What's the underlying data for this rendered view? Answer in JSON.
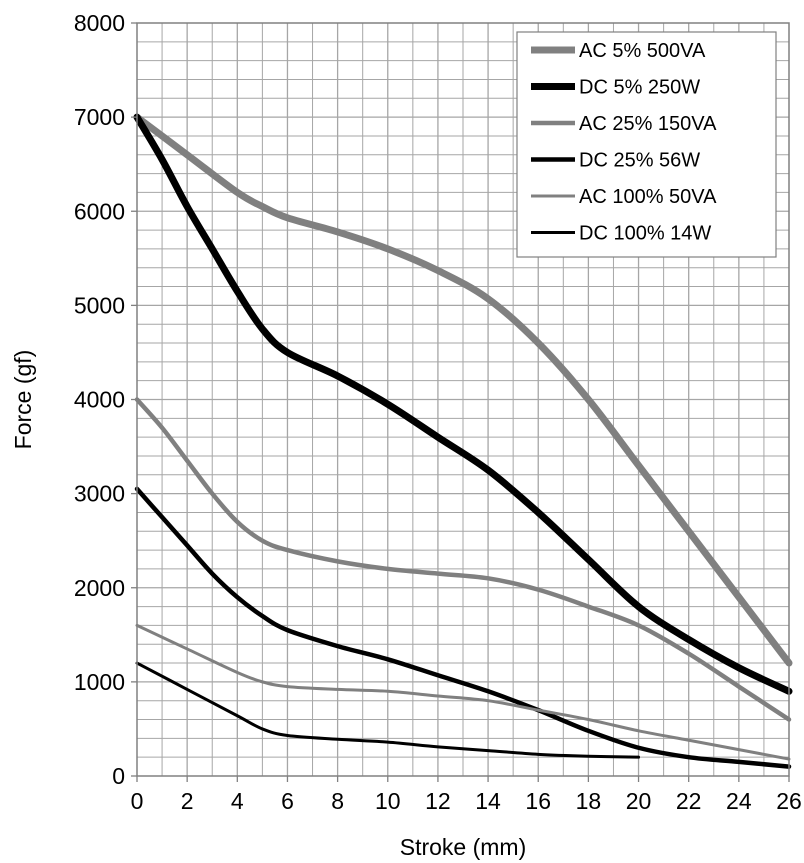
{
  "chart_data": {
    "type": "line",
    "title": "",
    "xlabel": "Stroke (mm)",
    "ylabel": "Force (gf)",
    "xlim": [
      0,
      26
    ],
    "ylim": [
      0,
      8000
    ],
    "xticks": [
      0,
      2,
      4,
      6,
      8,
      10,
      12,
      14,
      16,
      18,
      20,
      22,
      24,
      26
    ],
    "yticks": [
      0,
      1000,
      2000,
      3000,
      4000,
      5000,
      6000,
      7000,
      8000
    ],
    "x_minor_step": 1,
    "y_minor_step": 200,
    "grid": true,
    "legend_position": "top-right",
    "series": [
      {
        "name": "AC 5% 500VA",
        "color": "#808080",
        "line_weight": "thickest",
        "points": [
          [
            0,
            7000
          ],
          [
            2,
            6600
          ],
          [
            4,
            6200
          ],
          [
            5,
            6050
          ],
          [
            6,
            5930
          ],
          [
            8,
            5780
          ],
          [
            10,
            5600
          ],
          [
            12,
            5370
          ],
          [
            14,
            5070
          ],
          [
            16,
            4600
          ],
          [
            18,
            4000
          ],
          [
            20,
            3300
          ],
          [
            22,
            2600
          ],
          [
            24,
            1900
          ],
          [
            26,
            1200
          ]
        ]
      },
      {
        "name": "DC 5% 250W",
        "color": "#000000",
        "line_weight": "thickest",
        "points": [
          [
            0,
            7000
          ],
          [
            1,
            6550
          ],
          [
            2,
            6050
          ],
          [
            3,
            5600
          ],
          [
            4,
            5150
          ],
          [
            5,
            4750
          ],
          [
            6,
            4500
          ],
          [
            8,
            4250
          ],
          [
            10,
            3950
          ],
          [
            12,
            3600
          ],
          [
            14,
            3250
          ],
          [
            16,
            2800
          ],
          [
            18,
            2300
          ],
          [
            20,
            1800
          ],
          [
            22,
            1450
          ],
          [
            24,
            1150
          ],
          [
            26,
            900
          ]
        ]
      },
      {
        "name": "AC 25% 150VA",
        "color": "#808080",
        "line_weight": "medium",
        "points": [
          [
            0,
            4000
          ],
          [
            1,
            3700
          ],
          [
            2,
            3350
          ],
          [
            3,
            3000
          ],
          [
            4,
            2700
          ],
          [
            5,
            2500
          ],
          [
            6,
            2400
          ],
          [
            8,
            2280
          ],
          [
            10,
            2200
          ],
          [
            12,
            2150
          ],
          [
            14,
            2100
          ],
          [
            16,
            1980
          ],
          [
            18,
            1800
          ],
          [
            20,
            1600
          ],
          [
            22,
            1300
          ],
          [
            24,
            950
          ],
          [
            26,
            600
          ]
        ]
      },
      {
        "name": "DC 25% 56W",
        "color": "#000000",
        "line_weight": "medium",
        "points": [
          [
            0,
            3050
          ],
          [
            1,
            2750
          ],
          [
            2,
            2450
          ],
          [
            3,
            2150
          ],
          [
            4,
            1900
          ],
          [
            5,
            1700
          ],
          [
            6,
            1550
          ],
          [
            8,
            1380
          ],
          [
            10,
            1240
          ],
          [
            12,
            1070
          ],
          [
            14,
            900
          ],
          [
            16,
            700
          ],
          [
            18,
            480
          ],
          [
            20,
            300
          ],
          [
            22,
            200
          ],
          [
            24,
            150
          ],
          [
            26,
            100
          ]
        ]
      },
      {
        "name": "AC 100% 50VA",
        "color": "#808080",
        "line_weight": "thin",
        "points": [
          [
            0,
            1600
          ],
          [
            2,
            1350
          ],
          [
            4,
            1100
          ],
          [
            5,
            1000
          ],
          [
            6,
            950
          ],
          [
            8,
            920
          ],
          [
            10,
            900
          ],
          [
            12,
            850
          ],
          [
            14,
            800
          ],
          [
            16,
            700
          ],
          [
            18,
            600
          ],
          [
            20,
            480
          ],
          [
            22,
            380
          ],
          [
            24,
            280
          ],
          [
            26,
            180
          ]
        ]
      },
      {
        "name": "DC 100% 14W",
        "color": "#000000",
        "line_weight": "thin",
        "points": [
          [
            0,
            1200
          ],
          [
            2,
            920
          ],
          [
            4,
            640
          ],
          [
            5,
            500
          ],
          [
            6,
            430
          ],
          [
            8,
            390
          ],
          [
            10,
            360
          ],
          [
            12,
            310
          ],
          [
            14,
            270
          ],
          [
            16,
            230
          ],
          [
            18,
            210
          ],
          [
            20,
            200
          ]
        ]
      }
    ]
  }
}
